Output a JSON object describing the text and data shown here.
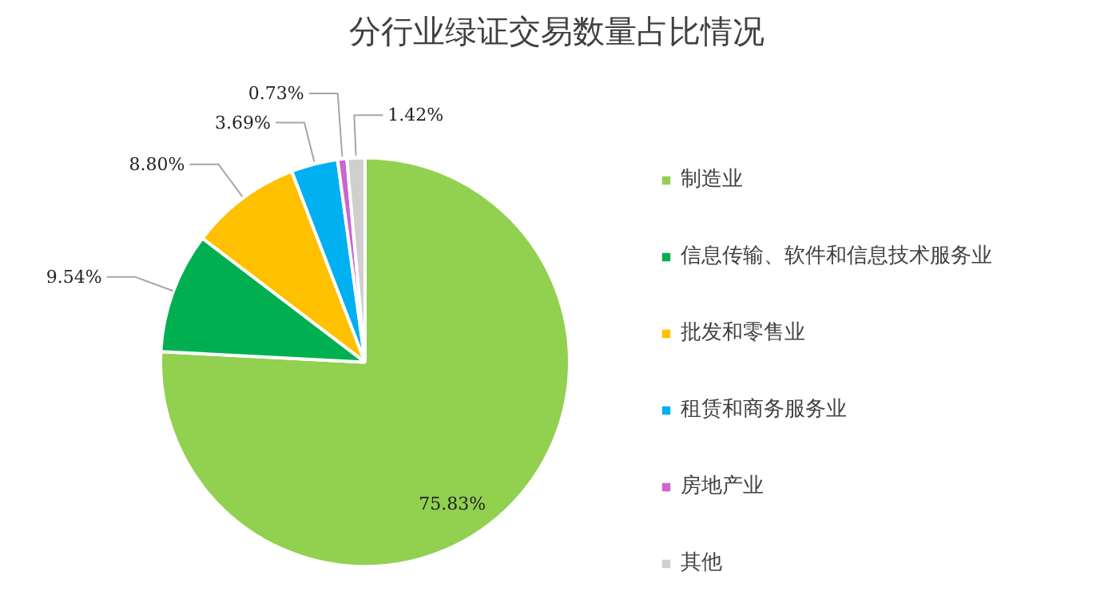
{
  "chart_data": {
    "type": "pie",
    "title": "分行业绿证交易数量占比情况",
    "categories": [
      "制造业",
      "信息传输、软件和信息技术服务业",
      "批发和零售业",
      "租赁和商务服务业",
      "房地产业",
      "其他"
    ],
    "values": [
      75.83,
      9.54,
      8.8,
      3.69,
      0.73,
      1.42
    ],
    "colors": [
      "#92d050",
      "#00b050",
      "#ffc000",
      "#00b0f0",
      "#cc66cc",
      "#d0cece"
    ],
    "value_labels": [
      "75.83%",
      "9.54%",
      "8.80%",
      "3.69%",
      "0.73%",
      "1.42%"
    ],
    "legend": "right"
  }
}
